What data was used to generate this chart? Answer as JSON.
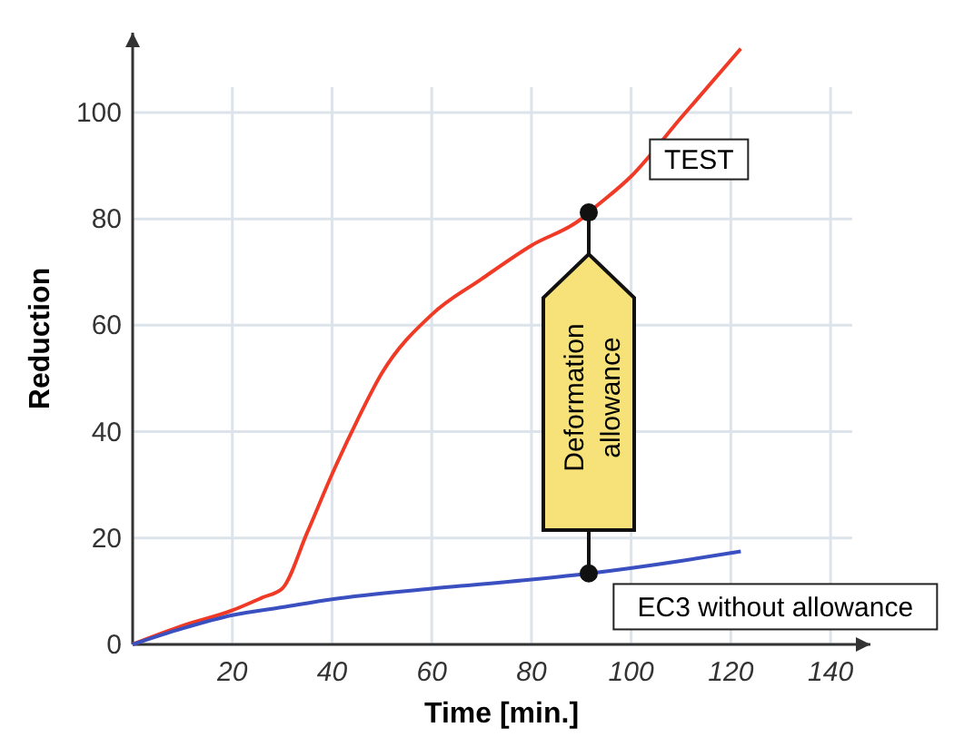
{
  "chart_data": {
    "type": "line",
    "xlabel": "Time [min.]",
    "ylabel": "Reduction",
    "xlim": [
      0,
      148
    ],
    "ylim": [
      0,
      115
    ],
    "xticks": [
      20,
      40,
      60,
      80,
      100,
      120,
      140
    ],
    "yticks": [
      0,
      20,
      40,
      60,
      80,
      100
    ],
    "grid": true,
    "series": [
      {
        "name": "TEST",
        "color": "#f03a26",
        "x": [
          0,
          10,
          20,
          26,
          30,
          35,
          40,
          45,
          50,
          60,
          70,
          80,
          90,
          92,
          100,
          110,
          122
        ],
        "values": [
          0,
          3.5,
          6.4,
          8.8,
          10.5,
          21,
          32,
          42,
          51,
          62,
          68.7,
          75,
          80,
          81.6,
          88,
          99,
          112
        ]
      },
      {
        "name": "EC3 without allowance",
        "color": "#3a4fc0",
        "x": [
          0,
          10,
          20,
          30,
          40,
          60,
          80,
          92,
          110,
          122
        ],
        "values": [
          0,
          3,
          5.5,
          7,
          8.5,
          10.5,
          12.2,
          13.4,
          15.7,
          17.5
        ]
      }
    ],
    "annotations": [
      "Deformation allowance"
    ]
  }
}
